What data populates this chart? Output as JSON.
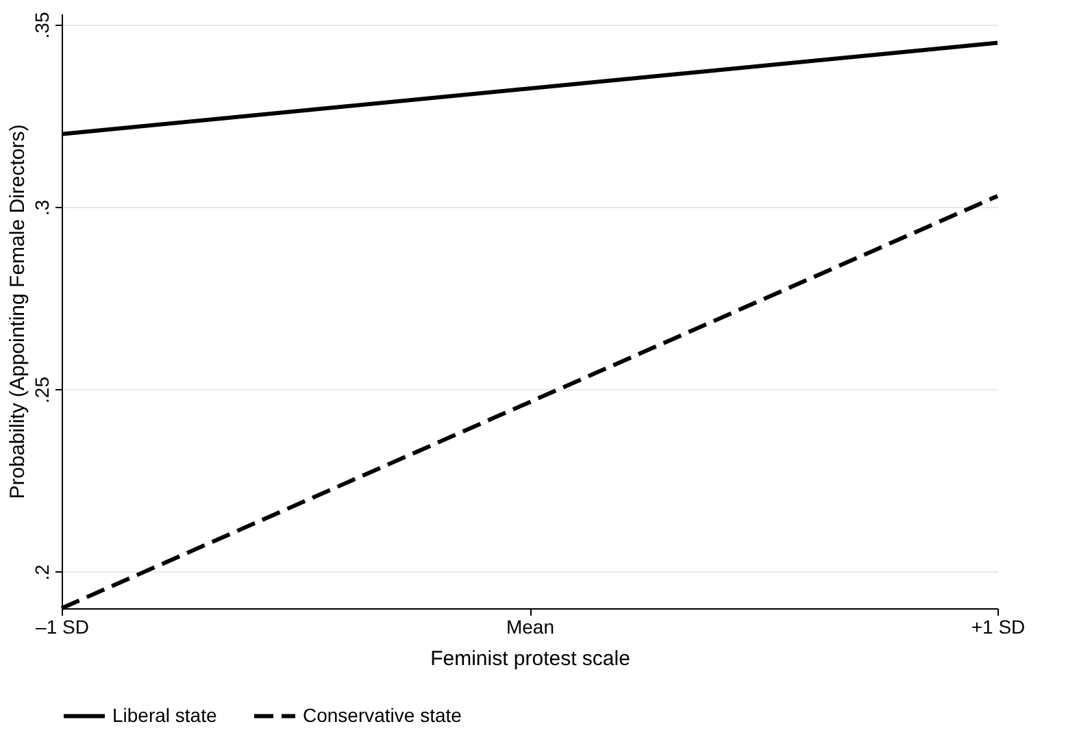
{
  "chart_data": {
    "type": "line",
    "xlabel": "Feminist protest scale",
    "ylabel": "Probability (Appointing Female Directors)",
    "x": [
      -1,
      1
    ],
    "xlim": [
      -1,
      1
    ],
    "xticks": [
      {
        "value": -1,
        "label": "–1 SD"
      },
      {
        "value": 0,
        "label": "Mean"
      },
      {
        "value": 1,
        "label": "+1 SD"
      }
    ],
    "ylim": [
      0.19,
      0.353
    ],
    "yticks": [
      {
        "value": 0.2,
        "label": ".2"
      },
      {
        "value": 0.25,
        "label": ".25"
      },
      {
        "value": 0.3,
        "label": ".3"
      },
      {
        "value": 0.35,
        "label": ".35"
      }
    ],
    "grid": "y",
    "legend": "bottom",
    "marker": "none",
    "series": [
      {
        "name": "Liberal state",
        "color": "#000000",
        "line_style": "solid",
        "values": [
          0.32,
          0.345
        ]
      },
      {
        "name": "Conservative state",
        "color": "#000000",
        "line_style": "dashed",
        "values": [
          0.19,
          0.303
        ]
      }
    ]
  }
}
